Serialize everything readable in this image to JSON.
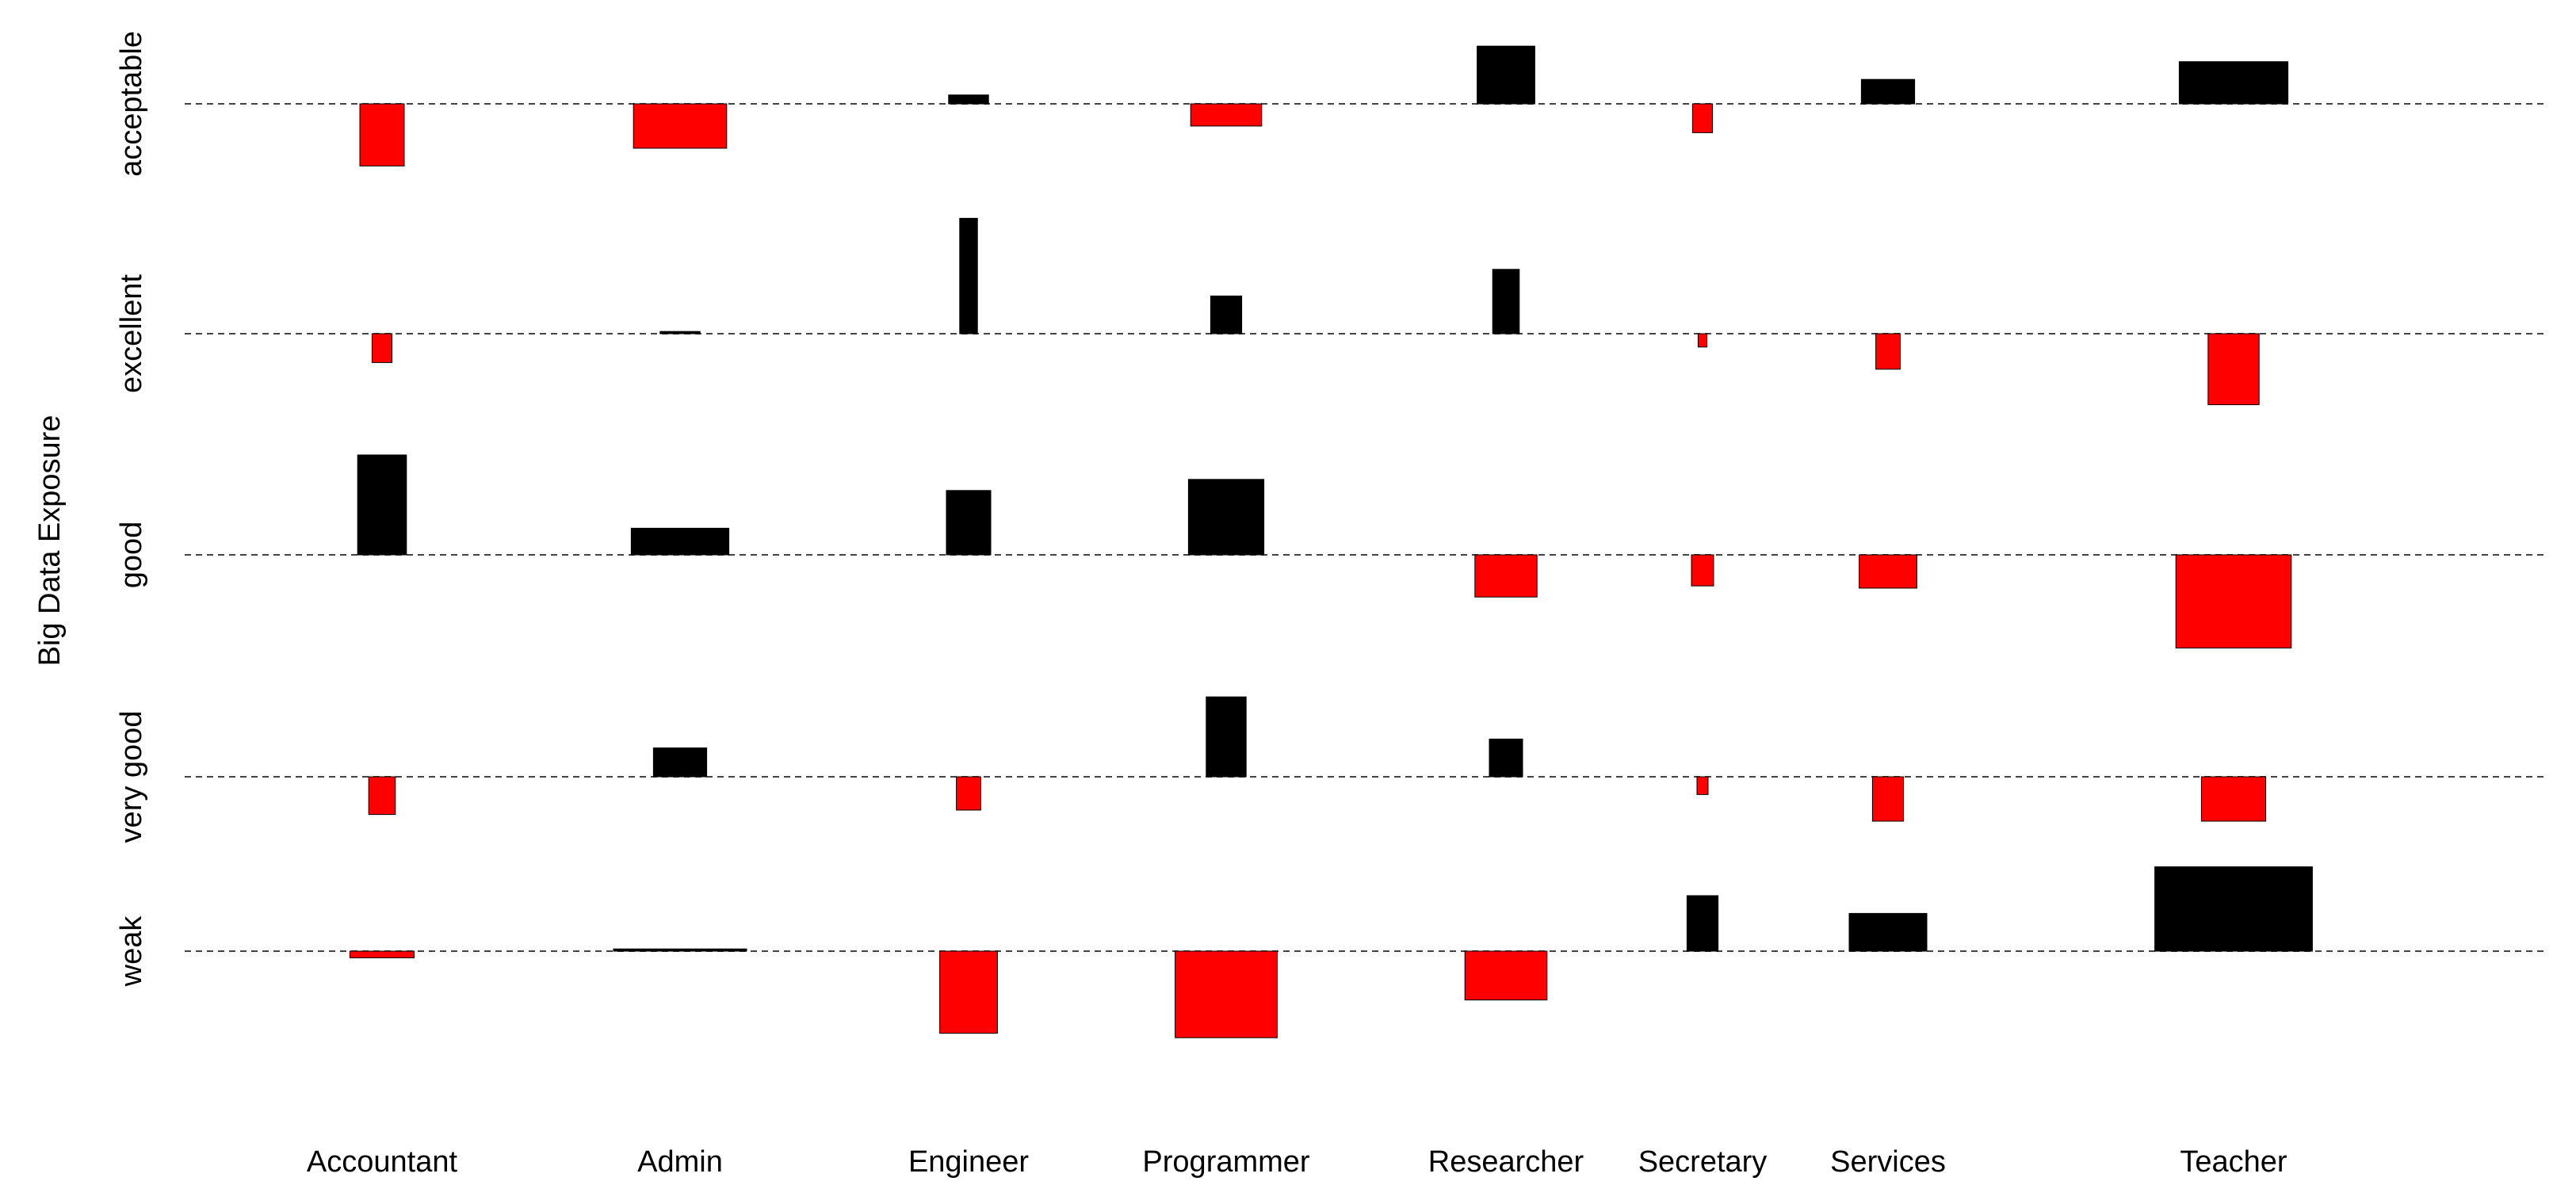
{
  "chart_data": {
    "type": "association",
    "title": "",
    "ylabel": "Big Data Exposure",
    "xlabel": "",
    "rows": [
      "acceptable",
      "excellent",
      "good",
      "very good",
      "weak"
    ],
    "columns": [
      "Accountant",
      "Admin",
      "Engineer",
      "Programmer",
      "Researcher",
      "Secretary",
      "Services",
      "Teacher"
    ],
    "positive_color": "#000000",
    "negative_color": "#ff0000",
    "legend": "none",
    "grid": false,
    "cells": [
      {
        "row": "acceptable",
        "column": "Accountant",
        "residual": -1.4,
        "weight": 1.0
      },
      {
        "row": "acceptable",
        "column": "Admin",
        "residual": -1.0,
        "weight": 2.1
      },
      {
        "row": "acceptable",
        "column": "Engineer",
        "residual": 0.2,
        "weight": 0.9
      },
      {
        "row": "acceptable",
        "column": "Programmer",
        "residual": -0.5,
        "weight": 1.6
      },
      {
        "row": "acceptable",
        "column": "Researcher",
        "residual": 1.3,
        "weight": 1.3
      },
      {
        "row": "acceptable",
        "column": "Secretary",
        "residual": -0.65,
        "weight": 0.45
      },
      {
        "row": "acceptable",
        "column": "Services",
        "residual": 0.55,
        "weight": 1.2
      },
      {
        "row": "acceptable",
        "column": "Teacher",
        "residual": 0.95,
        "weight": 2.45
      },
      {
        "row": "excellent",
        "column": "Accountant",
        "residual": -0.65,
        "weight": 0.45
      },
      {
        "row": "excellent",
        "column": "Admin",
        "residual": 0.05,
        "weight": 0.9
      },
      {
        "row": "excellent",
        "column": "Engineer",
        "residual": 2.6,
        "weight": 0.4
      },
      {
        "row": "excellent",
        "column": "Programmer",
        "residual": 0.85,
        "weight": 0.7
      },
      {
        "row": "excellent",
        "column": "Researcher",
        "residual": 1.45,
        "weight": 0.6
      },
      {
        "row": "excellent",
        "column": "Secretary",
        "residual": -0.3,
        "weight": 0.2
      },
      {
        "row": "excellent",
        "column": "Services",
        "residual": -0.8,
        "weight": 0.55
      },
      {
        "row": "excellent",
        "column": "Teacher",
        "residual": -1.6,
        "weight": 1.15
      },
      {
        "row": "good",
        "column": "Accountant",
        "residual": 2.25,
        "weight": 1.1
      },
      {
        "row": "good",
        "column": "Admin",
        "residual": 0.6,
        "weight": 2.2
      },
      {
        "row": "good",
        "column": "Engineer",
        "residual": 1.45,
        "weight": 1.0
      },
      {
        "row": "good",
        "column": "Programmer",
        "residual": 1.7,
        "weight": 1.7
      },
      {
        "row": "good",
        "column": "Researcher",
        "residual": -0.95,
        "weight": 1.4
      },
      {
        "row": "good",
        "column": "Secretary",
        "residual": -0.7,
        "weight": 0.5
      },
      {
        "row": "good",
        "column": "Services",
        "residual": -0.75,
        "weight": 1.3
      },
      {
        "row": "good",
        "column": "Teacher",
        "residual": -2.1,
        "weight": 2.6
      },
      {
        "row": "very good",
        "column": "Accountant",
        "residual": -0.85,
        "weight": 0.6
      },
      {
        "row": "very good",
        "column": "Admin",
        "residual": 0.65,
        "weight": 1.2
      },
      {
        "row": "very good",
        "column": "Engineer",
        "residual": -0.75,
        "weight": 0.55
      },
      {
        "row": "very good",
        "column": "Programmer",
        "residual": 1.8,
        "weight": 0.9
      },
      {
        "row": "very good",
        "column": "Researcher",
        "residual": 0.85,
        "weight": 0.75
      },
      {
        "row": "very good",
        "column": "Secretary",
        "residual": -0.4,
        "weight": 0.25
      },
      {
        "row": "very good",
        "column": "Services",
        "residual": -1.0,
        "weight": 0.7
      },
      {
        "row": "very good",
        "column": "Teacher",
        "residual": -1.0,
        "weight": 1.45
      },
      {
        "row": "weak",
        "column": "Accountant",
        "residual": -0.15,
        "weight": 1.45
      },
      {
        "row": "weak",
        "column": "Admin",
        "residual": 0.05,
        "weight": 3.0
      },
      {
        "row": "weak",
        "column": "Engineer",
        "residual": -1.85,
        "weight": 1.3
      },
      {
        "row": "weak",
        "column": "Programmer",
        "residual": -1.95,
        "weight": 2.3
      },
      {
        "row": "weak",
        "column": "Researcher",
        "residual": -1.1,
        "weight": 1.85
      },
      {
        "row": "weak",
        "column": "Secretary",
        "residual": 1.25,
        "weight": 0.7
      },
      {
        "row": "weak",
        "column": "Services",
        "residual": 0.85,
        "weight": 1.75
      },
      {
        "row": "weak",
        "column": "Teacher",
        "residual": 1.9,
        "weight": 3.55
      }
    ]
  }
}
